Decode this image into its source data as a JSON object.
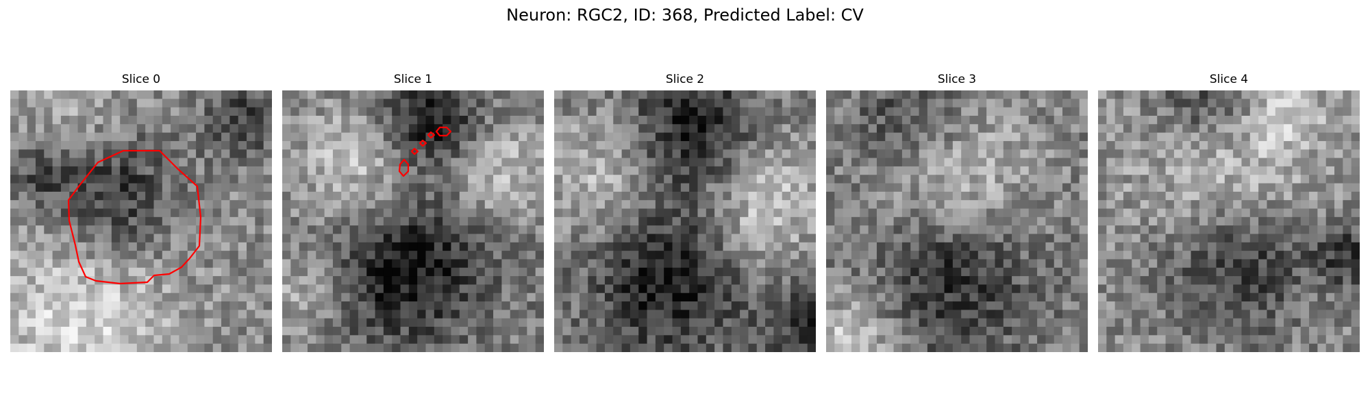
{
  "figure": {
    "title": "Neuron: RGC2, ID: 368, Predicted Label: CV"
  },
  "panels": [
    {
      "title": "Slice 0"
    },
    {
      "title": "Slice 1"
    },
    {
      "title": "Slice 2"
    },
    {
      "title": "Slice 3"
    },
    {
      "title": "Slice 4"
    }
  ],
  "colors": {
    "contour": "#ff0000",
    "colormap": "gray"
  }
}
